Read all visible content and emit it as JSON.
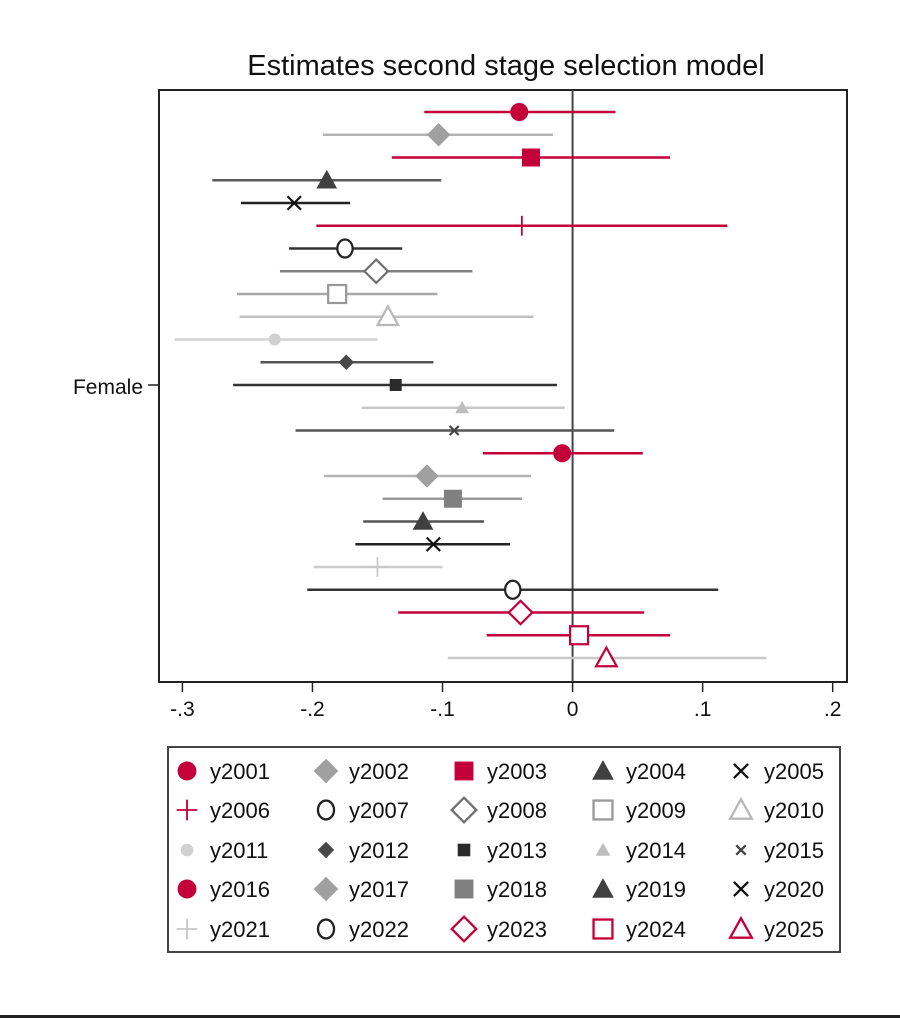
{
  "chart_data": {
    "type": "scatter",
    "subtype": "coefficient-plot",
    "title": "Estimates second stage selection model",
    "xlabel": "",
    "ylabel": "",
    "y_category": "Female",
    "xlim": [
      -0.318,
      0.211
    ],
    "xticks": [
      -0.3,
      -0.2,
      -0.1,
      0,
      0.1,
      0.2
    ],
    "xtick_labels": [
      "-.3",
      "-.2",
      "-.1",
      "0",
      ".1",
      ".2"
    ],
    "reference_line": 0,
    "grid": false,
    "legend_position": "bottom",
    "legend_columns": 5,
    "colors": {
      "red": "#c4003b",
      "axis": "#222222",
      "text": "#111111"
    },
    "series": [
      {
        "name": "y2001",
        "estimate": -0.041,
        "ci_low": -0.114,
        "ci_high": 0.033,
        "marker": "circle",
        "filled": true,
        "color": "#c4003b",
        "line_color": "#c4003b",
        "size": "large"
      },
      {
        "name": "y2002",
        "estimate": -0.103,
        "ci_low": -0.192,
        "ci_high": -0.015,
        "marker": "diamond",
        "filled": true,
        "color": "#a0a0a0",
        "line_color": "#b4b4b4",
        "size": "large"
      },
      {
        "name": "y2003",
        "estimate": -0.032,
        "ci_low": -0.139,
        "ci_high": 0.075,
        "marker": "square",
        "filled": true,
        "color": "#c4003b",
        "line_color": "#c4003b",
        "size": "large"
      },
      {
        "name": "y2004",
        "estimate": -0.189,
        "ci_low": -0.277,
        "ci_high": -0.101,
        "marker": "triangle",
        "filled": true,
        "color": "#404040",
        "line_color": "#5a5a5a",
        "size": "large"
      },
      {
        "name": "y2005",
        "estimate": -0.214,
        "ci_low": -0.255,
        "ci_high": -0.171,
        "marker": "x",
        "filled": false,
        "color": "#111111",
        "line_color": "#222222",
        "size": "large"
      },
      {
        "name": "y2006",
        "estimate": -0.039,
        "ci_low": -0.197,
        "ci_high": 0.119,
        "marker": "plus",
        "filled": false,
        "color": "#c4003b",
        "line_color": "#c4003b",
        "size": "large"
      },
      {
        "name": "y2007",
        "estimate": -0.175,
        "ci_low": -0.218,
        "ci_high": -0.131,
        "marker": "circle",
        "filled": false,
        "color": "#222222",
        "line_color": "#333333",
        "size": "large"
      },
      {
        "name": "y2008",
        "estimate": -0.151,
        "ci_low": -0.225,
        "ci_high": -0.077,
        "marker": "diamond",
        "filled": false,
        "color": "#707070",
        "line_color": "#808080",
        "size": "large"
      },
      {
        "name": "y2009",
        "estimate": -0.181,
        "ci_low": -0.258,
        "ci_high": -0.104,
        "marker": "square",
        "filled": false,
        "color": "#999999",
        "line_color": "#a8a8a8",
        "size": "large"
      },
      {
        "name": "y2010",
        "estimate": -0.142,
        "ci_low": -0.256,
        "ci_high": -0.03,
        "marker": "triangle",
        "filled": false,
        "color": "#b8b8b8",
        "line_color": "#c0c0c0",
        "size": "large"
      },
      {
        "name": "y2011",
        "estimate": -0.229,
        "ci_low": -0.306,
        "ci_high": -0.15,
        "marker": "circle",
        "filled": true,
        "color": "#d0d0d0",
        "line_color": "#d4d4d4",
        "size": "small"
      },
      {
        "name": "y2012",
        "estimate": -0.174,
        "ci_low": -0.24,
        "ci_high": -0.107,
        "marker": "diamond",
        "filled": true,
        "color": "#484848",
        "line_color": "#555555",
        "size": "small"
      },
      {
        "name": "y2013",
        "estimate": -0.136,
        "ci_low": -0.261,
        "ci_high": -0.012,
        "marker": "square",
        "filled": true,
        "color": "#2a2a2a",
        "line_color": "#333333",
        "size": "small"
      },
      {
        "name": "y2014",
        "estimate": -0.085,
        "ci_low": -0.162,
        "ci_high": -0.006,
        "marker": "triangle",
        "filled": true,
        "color": "#bdbdbd",
        "line_color": "#c8c8c8",
        "size": "small"
      },
      {
        "name": "y2015",
        "estimate": -0.091,
        "ci_low": -0.213,
        "ci_high": 0.032,
        "marker": "x",
        "filled": false,
        "color": "#444444",
        "line_color": "#555555",
        "size": "small"
      },
      {
        "name": "y2016",
        "estimate": -0.008,
        "ci_low": -0.069,
        "ci_high": 0.054,
        "marker": "circle",
        "filled": true,
        "color": "#c4003b",
        "line_color": "#c4003b",
        "size": "large"
      },
      {
        "name": "y2017",
        "estimate": -0.112,
        "ci_low": -0.191,
        "ci_high": -0.032,
        "marker": "diamond",
        "filled": true,
        "color": "#a0a0a0",
        "line_color": "#b4b4b4",
        "size": "large"
      },
      {
        "name": "y2018",
        "estimate": -0.092,
        "ci_low": -0.146,
        "ci_high": -0.039,
        "marker": "square",
        "filled": true,
        "color": "#808080",
        "line_color": "#999999",
        "size": "large"
      },
      {
        "name": "y2019",
        "estimate": -0.115,
        "ci_low": -0.161,
        "ci_high": -0.068,
        "marker": "triangle",
        "filled": true,
        "color": "#404040",
        "line_color": "#555555",
        "size": "large"
      },
      {
        "name": "y2020",
        "estimate": -0.107,
        "ci_low": -0.167,
        "ci_high": -0.048,
        "marker": "x",
        "filled": false,
        "color": "#111111",
        "line_color": "#222222",
        "size": "large"
      },
      {
        "name": "y2021",
        "estimate": -0.15,
        "ci_low": -0.199,
        "ci_high": -0.1,
        "marker": "plus",
        "filled": false,
        "color": "#c8c8c8",
        "line_color": "#cccccc",
        "size": "large"
      },
      {
        "name": "y2022",
        "estimate": -0.046,
        "ci_low": -0.204,
        "ci_high": 0.112,
        "marker": "circle",
        "filled": false,
        "color": "#222222",
        "line_color": "#333333",
        "size": "large"
      },
      {
        "name": "y2023",
        "estimate": -0.04,
        "ci_low": -0.134,
        "ci_high": 0.055,
        "marker": "diamond",
        "filled": false,
        "color": "#c4003b",
        "line_color": "#c4003b",
        "size": "large"
      },
      {
        "name": "y2024",
        "estimate": 0.005,
        "ci_low": -0.066,
        "ci_high": 0.075,
        "marker": "square",
        "filled": false,
        "color": "#c4003b",
        "line_color": "#c4003b",
        "size": "large"
      },
      {
        "name": "y2025",
        "estimate": 0.026,
        "ci_low": -0.096,
        "ci_high": 0.149,
        "marker": "triangle",
        "filled": false,
        "color": "#c4003b",
        "line_color": "#c8c8c8",
        "size": "large"
      }
    ]
  }
}
